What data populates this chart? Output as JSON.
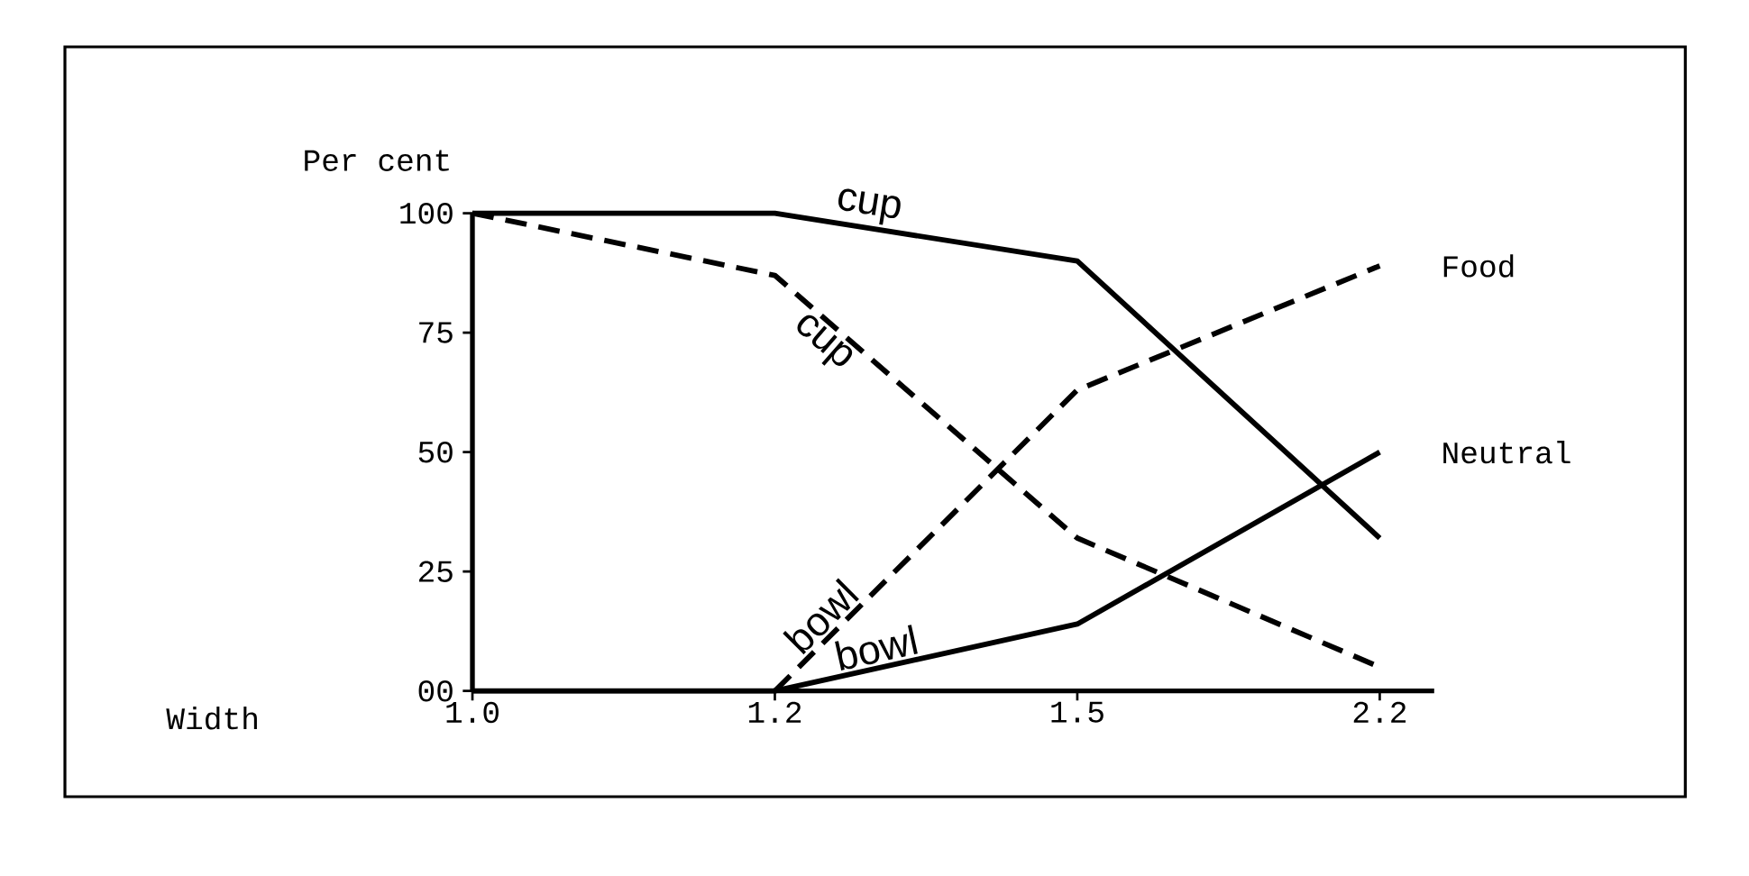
{
  "chart_data": {
    "type": "line",
    "xlabel": "Width",
    "ylabel": "Per cent",
    "categories": [
      "1.0",
      "1.2",
      "1.5",
      "2.2"
    ],
    "series": [
      {
        "name": "cup",
        "color": "#000000",
        "line_style": "solid",
        "values": [
          100,
          100,
          90,
          32
        ]
      },
      {
        "name": "cup",
        "color": "#000000",
        "line_style": "dashed",
        "values": [
          100,
          87,
          32,
          5
        ]
      },
      {
        "name": "bowl",
        "color": "#000000",
        "line_style": "dashed",
        "values": [
          null,
          0,
          63,
          89
        ]
      },
      {
        "name": "bowl",
        "color": "#000000",
        "line_style": "solid",
        "values": [
          0,
          0,
          14,
          50
        ]
      }
    ],
    "ylim": [
      0,
      100
    ],
    "yticks": [
      {
        "value": 0,
        "label": "00"
      },
      25,
      50,
      75,
      100
    ],
    "annotations": [
      {
        "text": "Food",
        "x": "2.2",
        "y": 89
      },
      {
        "text": "Neutral",
        "x": "2.2",
        "y": 50
      }
    ],
    "grid": false,
    "legend": false,
    "marker": "none"
  }
}
